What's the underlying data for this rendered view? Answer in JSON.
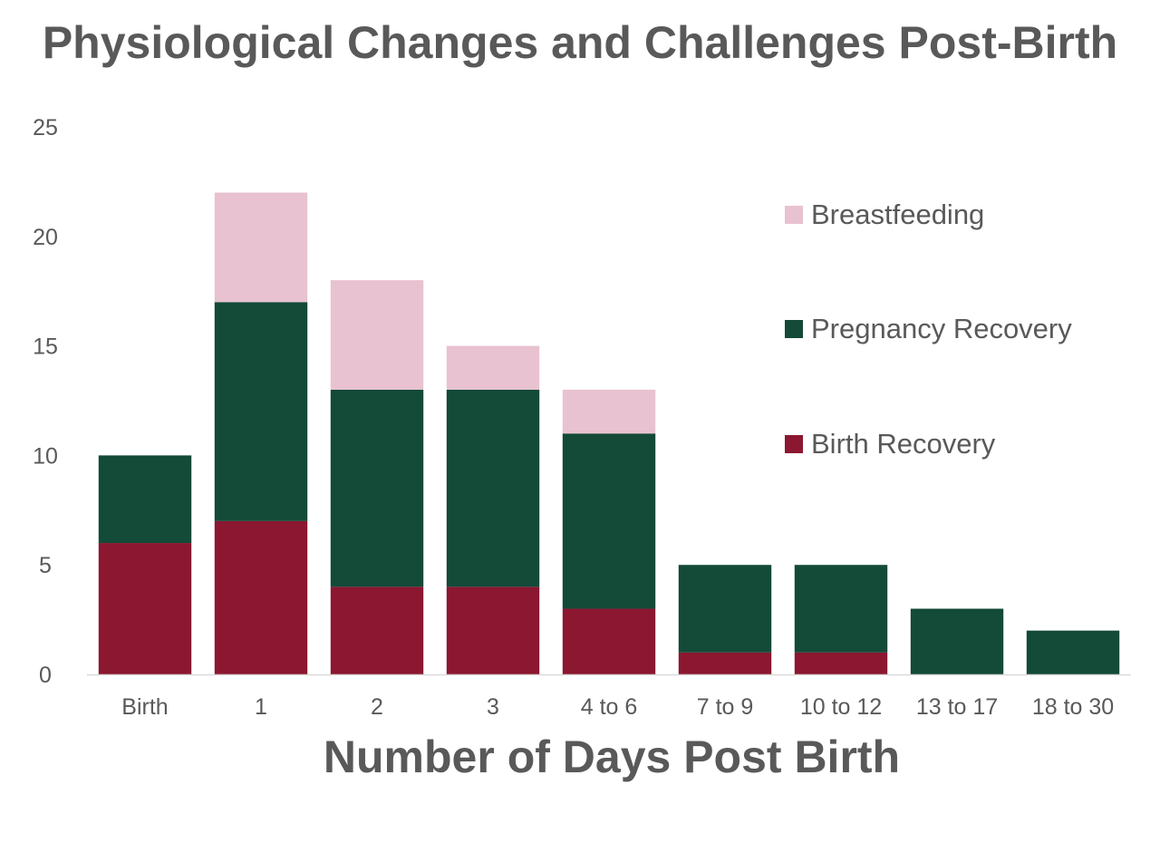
{
  "chart_data": {
    "type": "bar",
    "stacked": true,
    "title": "Physiological Changes and Challenges Post-Birth",
    "xlabel": "Number of Days Post Birth",
    "ylabel": "",
    "ylim": [
      0,
      25
    ],
    "yticks": [
      0,
      5,
      10,
      15,
      20,
      25
    ],
    "grid": false,
    "legend_position": "top-right",
    "categories": [
      "Birth",
      "1",
      "2",
      "3",
      "4 to 6",
      "7 to 9",
      "10 to 12",
      "13 to 17",
      "18 to 30"
    ],
    "series": [
      {
        "name": "Birth Recovery",
        "color": "#8B1730",
        "values": [
          6,
          7,
          4,
          4,
          3,
          1,
          1,
          0,
          0
        ]
      },
      {
        "name": "Pregnancy Recovery",
        "color": "#134A38",
        "values": [
          4,
          10,
          9,
          9,
          8,
          4,
          4,
          3,
          2
        ]
      },
      {
        "name": "Breastfeeding",
        "color": "#E8C2D0",
        "values": [
          0,
          5,
          5,
          2,
          2,
          0,
          0,
          0,
          0
        ]
      }
    ],
    "legend_order": [
      "Breastfeeding",
      "Pregnancy Recovery",
      "Birth Recovery"
    ]
  }
}
